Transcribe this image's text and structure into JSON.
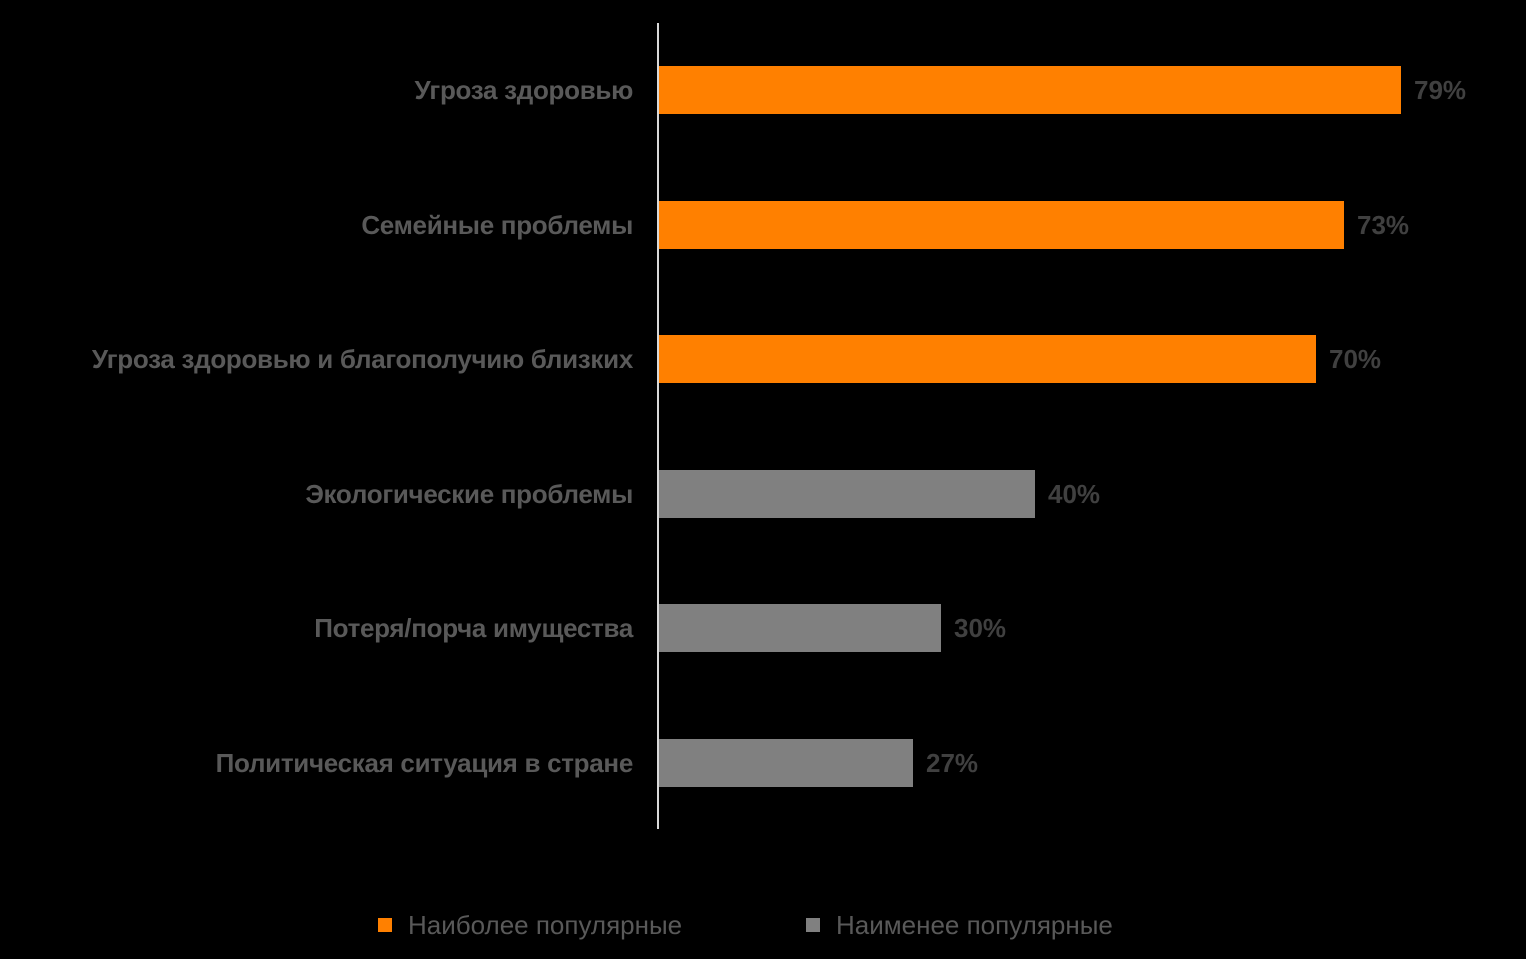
{
  "chart_data": {
    "type": "bar",
    "orientation": "horizontal",
    "title": "",
    "xlabel": "",
    "ylabel": "",
    "xlim": [
      0,
      100
    ],
    "grid": false,
    "legend_position": "bottom",
    "categories": [
      "Угроза здоровью",
      "Семейные проблемы",
      "Угроза здоровью и благополучию близких",
      "Экологические проблемы",
      "Потеря/порча имущества",
      "Политическая ситуация в стране"
    ],
    "values": [
      79,
      73,
      70,
      40,
      30,
      27
    ],
    "value_labels": [
      "79%",
      "73%",
      "70%",
      "40%",
      "30%",
      "27%"
    ],
    "groups": [
      "most",
      "most",
      "most",
      "least",
      "least",
      "least"
    ],
    "series": [
      {
        "name": "Наиболее популярные",
        "color": "#ff8000",
        "categories": [
          "Угроза здоровью",
          "Семейные проблемы",
          "Угроза здоровью и благополучию близких"
        ],
        "values": [
          79,
          73,
          70
        ]
      },
      {
        "name": "Наименее популярные",
        "color": "#808080",
        "categories": [
          "Экологические проблемы",
          "Потеря/порча имущества",
          "Политическая ситуация в стране"
        ],
        "values": [
          40,
          30,
          27
        ]
      }
    ]
  },
  "legend": {
    "items": [
      {
        "label": "Наиболее популярные",
        "color": "#ff8000"
      },
      {
        "label": "Наименее популярные",
        "color": "#808080"
      }
    ]
  },
  "colors": {
    "background": "#000000",
    "most_popular": "#ff8000",
    "least_popular": "#808080",
    "axis": "#d9d9d9"
  }
}
